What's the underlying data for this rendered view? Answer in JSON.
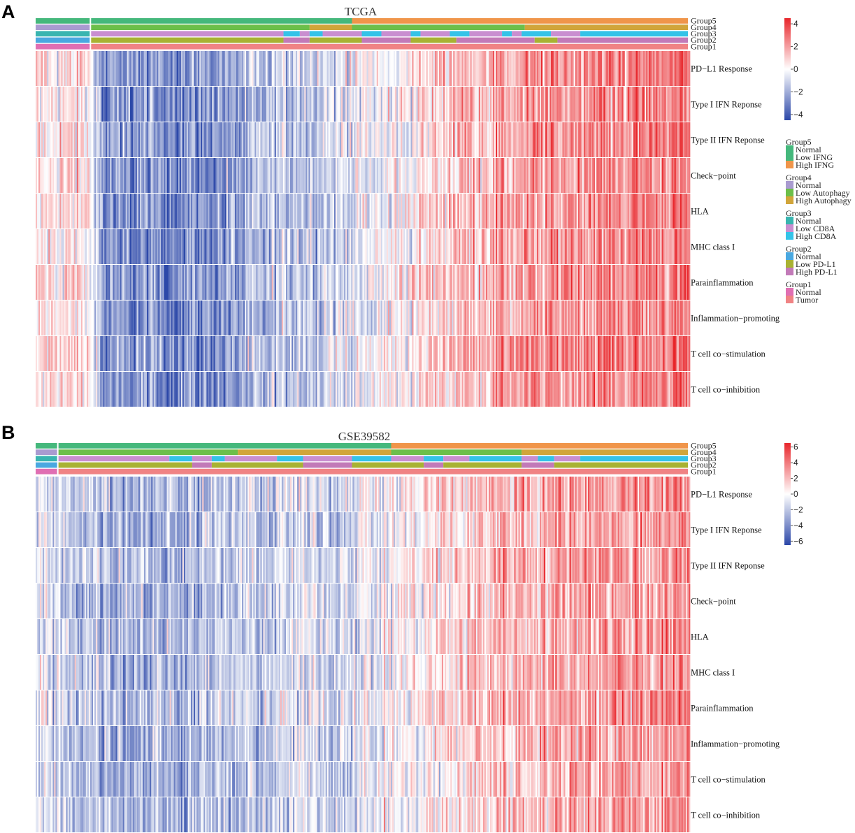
{
  "colors": {
    "low": "#2b47a8",
    "mid": "#ffffff",
    "high": "#e8262b",
    "group5": {
      "Normal": "#45b87c",
      "Low IFNG": "#45b87c",
      "High IFNG": "#f0954a"
    },
    "group4": {
      "Normal": "#a99bd0",
      "Low Autophagy": "#6cbf4a",
      "High Autophagy": "#d1a53a"
    },
    "group3": {
      "Normal": "#39b5b0",
      "Low CD8A": "#c98ed0",
      "High CD8A": "#34c3e8"
    },
    "group2": {
      "Normal": "#4aa8e0",
      "Low PD-L1": "#a8b232",
      "High PD-L1": "#c27ab8"
    },
    "group1": {
      "Normal": "#e06fb3",
      "Tumor": "#f08384"
    }
  },
  "chart_data": [
    {
      "type": "heatmap",
      "panel": "A",
      "title": "TCGA",
      "annotation_rows": [
        "Group5",
        "Group4",
        "Group3",
        "Group2",
        "Group1"
      ],
      "rows": [
        "PD−L1 Response",
        "Type I IFN Reponse",
        "Type II IFN Reponse",
        "Check−point",
        "HLA",
        "MHC class I",
        "Parainflammation",
        "Inflammation−promoting",
        "T cell co−stimulation",
        "T cell co−inhibition"
      ],
      "colorbar": {
        "ticks": [
          "4",
          "2",
          "0",
          "−2",
          "−4"
        ],
        "range": [
          -4.5,
          4.5
        ]
      },
      "columns": 460,
      "normal_fraction": 0.085,
      "group5_segments": [
        [
          "Normal",
          0.085
        ],
        [
          "Low IFNG",
          0.485
        ],
        [
          "High IFNG",
          1.0
        ]
      ],
      "group4_segments": [
        [
          "Normal",
          0.085
        ],
        [
          "Low Autophagy",
          0.42
        ],
        [
          "High Autophagy",
          0.485
        ],
        [
          "Low Autophagy",
          0.75
        ],
        [
          "High Autophagy",
          1.0
        ]
      ],
      "group3_segments": [
        [
          "Normal",
          0.085
        ],
        [
          "Low CD8A",
          0.38
        ],
        [
          "High CD8A",
          0.405
        ],
        [
          "Low CD8A",
          0.42
        ],
        [
          "High CD8A",
          0.44
        ],
        [
          "Low CD8A",
          0.5
        ],
        [
          "High CD8A",
          0.53
        ],
        [
          "Low CD8A",
          0.575
        ],
        [
          "High CD8A",
          0.59
        ],
        [
          "Low CD8A",
          0.635
        ],
        [
          "High CD8A",
          0.665
        ],
        [
          "Low CD8A",
          0.715
        ],
        [
          "High CD8A",
          0.73
        ],
        [
          "Low CD8A",
          0.745
        ],
        [
          "High CD8A",
          0.79
        ],
        [
          "Low CD8A",
          0.835
        ],
        [
          "High CD8A",
          1.0
        ]
      ],
      "group2_segments": [
        [
          "Normal",
          0.085
        ],
        [
          "Low PD-L1",
          0.38
        ],
        [
          "High PD-L1",
          0.42
        ],
        [
          "Low PD-L1",
          0.5
        ],
        [
          "High PD-L1",
          0.575
        ],
        [
          "Low PD-L1",
          0.645
        ],
        [
          "High PD-L1",
          0.765
        ],
        [
          "Low PD-L1",
          0.8
        ],
        [
          "High PD-L1",
          1.0
        ]
      ],
      "group1_segments": [
        [
          "Normal",
          0.085
        ],
        [
          "Tumor",
          1.0
        ]
      ],
      "trend": [
        [
          0.0,
          0.25
        ],
        [
          0.085,
          0.3
        ],
        [
          0.1,
          -1.6
        ],
        [
          0.3,
          -1.4
        ],
        [
          0.38,
          -0.7
        ],
        [
          0.5,
          -0.3
        ],
        [
          0.58,
          0.3
        ],
        [
          0.66,
          0.9
        ],
        [
          0.82,
          1.3
        ],
        [
          1.0,
          1.6
        ]
      ]
    },
    {
      "type": "heatmap",
      "panel": "B",
      "title": "GSE39582",
      "annotation_rows": [
        "Group5",
        "Group4",
        "Group3",
        "Group2",
        "Group1"
      ],
      "rows": [
        "PD−L1 Response",
        "Type I IFN Reponse",
        "Type II IFN Reponse",
        "Check−point",
        "HLA",
        "MHC class I",
        "Parainflammation",
        "Inflammation−promoting",
        "T cell co−stimulation",
        "T cell co−inhibition"
      ],
      "colorbar": {
        "ticks": [
          "6",
          "4",
          "2",
          "0",
          "−2",
          "−4",
          "−6"
        ],
        "range": [
          -6.5,
          6.5
        ]
      },
      "columns": 460,
      "normal_fraction": 0.035,
      "group5_segments": [
        [
          "Normal",
          0.035
        ],
        [
          "Low IFNG",
          0.545
        ],
        [
          "High IFNG",
          1.0
        ]
      ],
      "group4_segments": [
        [
          "Normal",
          0.035
        ],
        [
          "Low Autophagy",
          0.31
        ],
        [
          "High Autophagy",
          0.545
        ],
        [
          "Low Autophagy",
          0.745
        ],
        [
          "High Autophagy",
          1.0
        ]
      ],
      "group3_segments": [
        [
          "Normal",
          0.035
        ],
        [
          "Low CD8A",
          0.205
        ],
        [
          "High CD8A",
          0.24
        ],
        [
          "Low CD8A",
          0.27
        ],
        [
          "High CD8A",
          0.29
        ],
        [
          "Low CD8A",
          0.37
        ],
        [
          "High CD8A",
          0.41
        ],
        [
          "Low CD8A",
          0.485
        ],
        [
          "High CD8A",
          0.545
        ],
        [
          "Low CD8A",
          0.595
        ],
        [
          "High CD8A",
          0.625
        ],
        [
          "Low CD8A",
          0.665
        ],
        [
          "High CD8A",
          0.745
        ],
        [
          "Low CD8A",
          0.77
        ],
        [
          "High CD8A",
          0.795
        ],
        [
          "Low CD8A",
          0.835
        ],
        [
          "High CD8A",
          1.0
        ]
      ],
      "group2_segments": [
        [
          "Normal",
          0.035
        ],
        [
          "Low PD-L1",
          0.24
        ],
        [
          "High PD-L1",
          0.27
        ],
        [
          "Low PD-L1",
          0.41
        ],
        [
          "High PD-L1",
          0.485
        ],
        [
          "Low PD-L1",
          0.595
        ],
        [
          "High PD-L1",
          0.625
        ],
        [
          "Low PD-L1",
          0.745
        ],
        [
          "High PD-L1",
          0.795
        ],
        [
          "Low PD-L1",
          1.0
        ]
      ],
      "group1_segments": [
        [
          "Normal",
          0.035
        ],
        [
          "Tumor",
          1.0
        ]
      ],
      "trend": [
        [
          0.0,
          -0.3
        ],
        [
          0.035,
          -0.6
        ],
        [
          0.2,
          -1.0
        ],
        [
          0.35,
          -0.6
        ],
        [
          0.5,
          -0.3
        ],
        [
          0.6,
          0.3
        ],
        [
          0.7,
          0.8
        ],
        [
          0.85,
          1.2
        ],
        [
          1.0,
          1.3
        ]
      ]
    }
  ],
  "legend": [
    {
      "title": "Group5",
      "items": [
        "Normal",
        "Low IFNG",
        "High IFNG"
      ]
    },
    {
      "title": "Group4",
      "items": [
        "Normal",
        "Low Autophagy",
        "High Autophagy"
      ]
    },
    {
      "title": "Group3",
      "items": [
        "Normal",
        "Low CD8A",
        "High CD8A"
      ]
    },
    {
      "title": "Group2",
      "items": [
        "Normal",
        "Low PD-L1",
        "High PD-L1"
      ]
    },
    {
      "title": "Group1",
      "items": [
        "Normal",
        "Tumor"
      ]
    }
  ]
}
